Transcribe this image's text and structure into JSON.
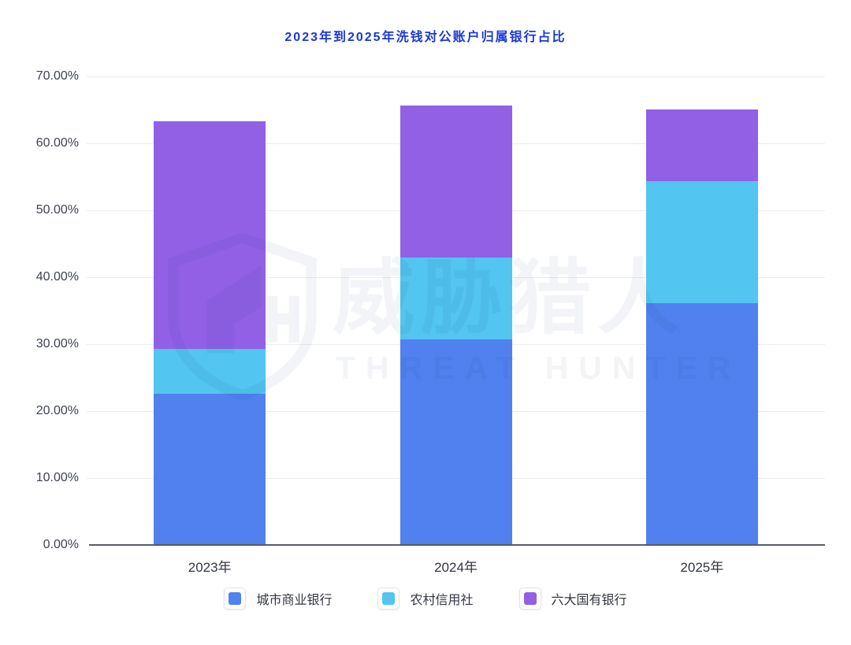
{
  "title": {
    "text": "2023年到2025年洗钱对公账户归属银行占比",
    "color": "#1a38d8"
  },
  "watermark": {
    "cn": "威胁猎人",
    "en": "THREAT HUNTER"
  },
  "chart_data": {
    "type": "bar",
    "stacked": true,
    "title": "2023年到2025年洗钱对公账户归属银行占比",
    "categories": [
      "2023年",
      "2024年",
      "2025年"
    ],
    "series": [
      {
        "id": "city-commercial-bank",
        "name": "城市商业银行",
        "color": "#5081ee",
        "values": [
          22.5,
          30.7,
          36.1
        ]
      },
      {
        "id": "rural-credit-cooperative",
        "name": "农村信用社",
        "color": "#52c5f0",
        "values": [
          6.8,
          12.2,
          18.3
        ]
      },
      {
        "id": "six-state-owned-banks",
        "name": "六大国有银行",
        "color": "#9160e5",
        "values": [
          34.0,
          22.8,
          10.7
        ]
      }
    ],
    "stack_totals": [
      63.3,
      65.7,
      65.1
    ],
    "xlabel": "",
    "ylabel": "",
    "ylim": [
      0,
      70
    ],
    "y_ticks": [
      {
        "value": 0,
        "label": "0.00%"
      },
      {
        "value": 10,
        "label": "10.00%"
      },
      {
        "value": 20,
        "label": "20.00%"
      },
      {
        "value": 30,
        "label": "30.00%"
      },
      {
        "value": 40,
        "label": "40.00%"
      },
      {
        "value": 50,
        "label": "50.00%"
      },
      {
        "value": 60,
        "label": "60.00%"
      },
      {
        "value": 70,
        "label": "70.00%"
      }
    ],
    "grid": true,
    "legend_position": "bottom"
  },
  "style": {
    "grid_color": "#ececf0",
    "axis_color": "#565b66",
    "tick_label_color": "#3f4450",
    "x_label_color": "#333640",
    "legend_label_color": "#333640",
    "watermark_color": "rgba(25,45,90,0.05)"
  }
}
